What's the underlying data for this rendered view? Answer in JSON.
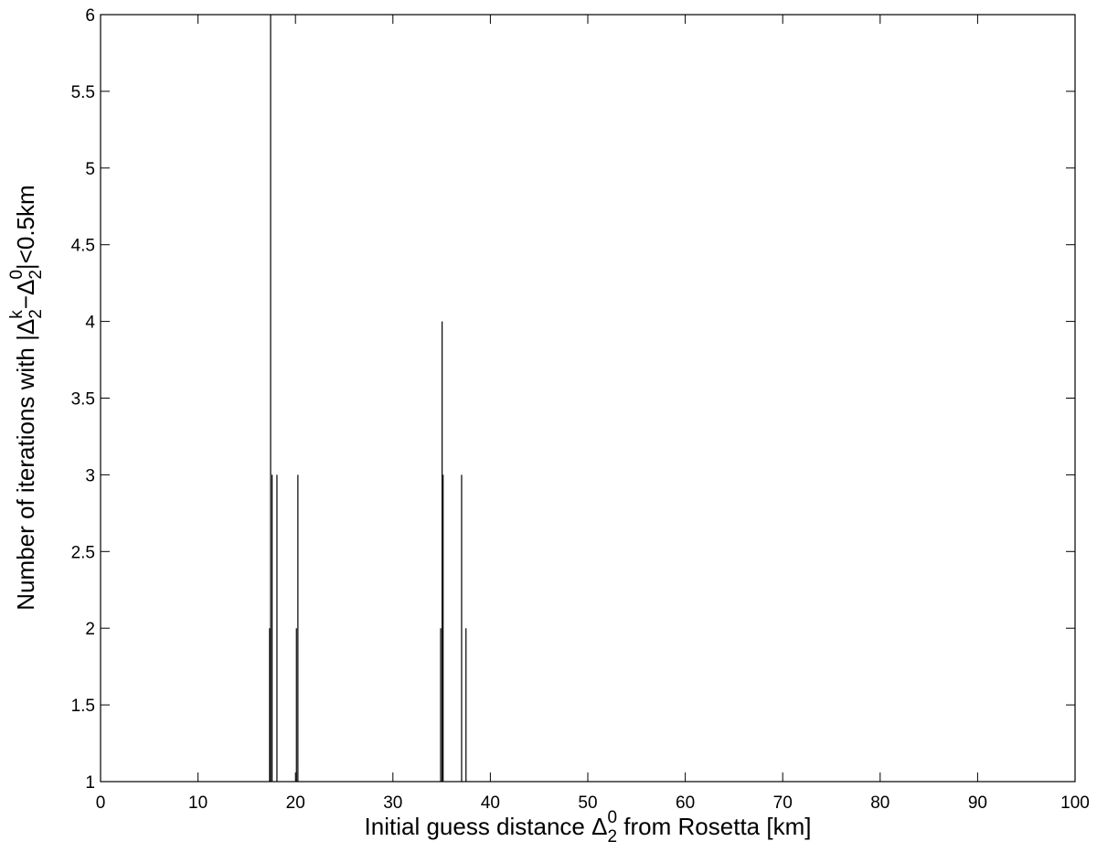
{
  "chart_data": {
    "type": "stem",
    "xlabel": [
      "Initial guess distance Δ",
      "2",
      "0",
      " from Rosetta [km]"
    ],
    "ylabel": [
      "Number of iterations with |Δ",
      "2",
      "k",
      "−Δ",
      "2",
      "0",
      "|<0.5km"
    ],
    "x": [
      17.35,
      17.45,
      17.6,
      18.1,
      20.1,
      20.25,
      34.9,
      35.05,
      35.15,
      37.05,
      37.5
    ],
    "values": [
      2,
      6,
      3,
      3,
      2,
      3,
      2,
      4,
      3,
      3,
      2
    ],
    "color": "#000000",
    "xlim": [
      0,
      100
    ],
    "xticks": [
      0,
      10,
      20,
      30,
      40,
      50,
      60,
      70,
      80,
      90,
      100
    ],
    "ylim": [
      1,
      6
    ],
    "yticks": [
      1,
      1.5,
      2,
      2.5,
      3,
      3.5,
      4,
      4.5,
      5,
      5.5,
      6
    ]
  }
}
